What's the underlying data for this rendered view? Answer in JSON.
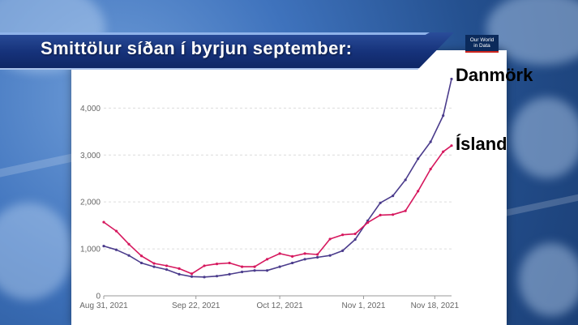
{
  "title": "Smittölur síðan í byrjun september:",
  "logo": {
    "line1": "Our World",
    "line2": "in Data"
  },
  "labels": {
    "danmork": "Danmörk",
    "island": "Ísland"
  },
  "colors": {
    "danmork": "#4b3c8c",
    "island": "#d6185e",
    "grid": "#dcdcdc",
    "axis": "#999999"
  },
  "chart_data": {
    "type": "line",
    "title": "",
    "xlabel": "",
    "ylabel": "",
    "ylim": [
      0,
      4800
    ],
    "yticks": [
      {
        "value": 0,
        "label": "0"
      },
      {
        "value": 1000,
        "label": "1,000"
      },
      {
        "value": 2000,
        "label": "2,000"
      },
      {
        "value": 3000,
        "label": "3,000"
      },
      {
        "value": 4000,
        "label": "4,000"
      }
    ],
    "xticks": [
      {
        "date": "2021-08-31",
        "label": "Aug 31, 2021"
      },
      {
        "date": "2021-09-22",
        "label": "Sep 22, 2021"
      },
      {
        "date": "2021-10-12",
        "label": "Oct 12, 2021"
      },
      {
        "date": "2021-11-01",
        "label": "Nov 1, 2021"
      },
      {
        "date": "2021-11-18",
        "label": "Nov 18, 2021"
      }
    ],
    "x_range": [
      "2021-08-31",
      "2021-11-22"
    ],
    "grid": true,
    "series": [
      {
        "name": "Danmörk",
        "color": "#4b3c8c",
        "dates": [
          "2021-08-31",
          "2021-09-03",
          "2021-09-06",
          "2021-09-09",
          "2021-09-12",
          "2021-09-15",
          "2021-09-18",
          "2021-09-21",
          "2021-09-24",
          "2021-09-27",
          "2021-09-30",
          "2021-10-03",
          "2021-10-06",
          "2021-10-09",
          "2021-10-12",
          "2021-10-15",
          "2021-10-18",
          "2021-10-21",
          "2021-10-24",
          "2021-10-27",
          "2021-10-30",
          "2021-11-02",
          "2021-11-05",
          "2021-11-08",
          "2021-11-11",
          "2021-11-14",
          "2021-11-17",
          "2021-11-20",
          "2021-11-22"
        ],
        "values": [
          1060,
          980,
          860,
          700,
          620,
          560,
          460,
          410,
          400,
          420,
          460,
          510,
          540,
          540,
          620,
          700,
          780,
          820,
          860,
          960,
          1200,
          1600,
          1980,
          2130,
          2470,
          2920,
          3280,
          3840,
          4620
        ]
      },
      {
        "name": "Ísland",
        "color": "#d6185e",
        "dates": [
          "2021-08-31",
          "2021-09-03",
          "2021-09-06",
          "2021-09-09",
          "2021-09-12",
          "2021-09-15",
          "2021-09-18",
          "2021-09-21",
          "2021-09-24",
          "2021-09-27",
          "2021-09-30",
          "2021-10-03",
          "2021-10-06",
          "2021-10-09",
          "2021-10-12",
          "2021-10-15",
          "2021-10-18",
          "2021-10-21",
          "2021-10-24",
          "2021-10-27",
          "2021-10-30",
          "2021-11-02",
          "2021-11-05",
          "2021-11-08",
          "2021-11-11",
          "2021-11-14",
          "2021-11-17",
          "2021-11-20",
          "2021-11-22"
        ],
        "values": [
          1570,
          1380,
          1100,
          850,
          690,
          640,
          580,
          470,
          640,
          680,
          700,
          620,
          620,
          780,
          900,
          840,
          900,
          880,
          1210,
          1300,
          1320,
          1560,
          1720,
          1730,
          1810,
          2230,
          2700,
          3070,
          3200
        ]
      }
    ]
  }
}
